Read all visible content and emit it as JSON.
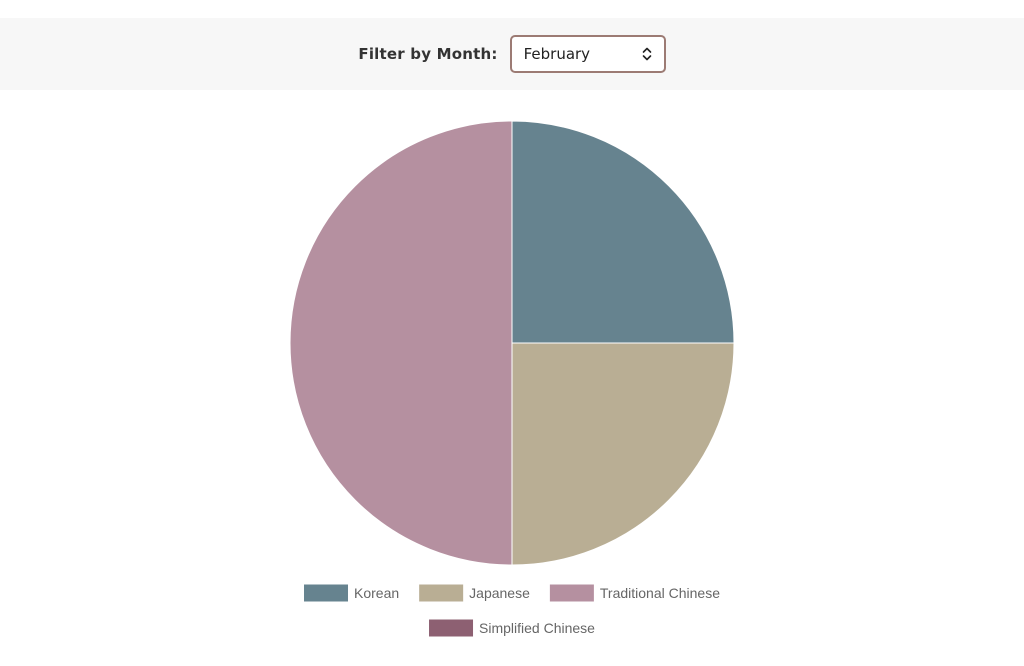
{
  "filter": {
    "label": "Filter by Month:",
    "selected_month": "February"
  },
  "icons": {
    "select_arrows": "up-down-chevron-icon"
  },
  "chart_data": {
    "type": "pie",
    "categories": [
      "Korean",
      "Japanese",
      "Traditional Chinese",
      "Simplified Chinese"
    ],
    "values": [
      1,
      1,
      2,
      0
    ],
    "colors": [
      "#66838f",
      "#b9ae94",
      "#b590a0",
      "#8d6072"
    ],
    "legend": {
      "position": "bottom",
      "entries": [
        "Korean",
        "Japanese",
        "Traditional Chinese",
        "Simplified Chinese"
      ]
    }
  }
}
